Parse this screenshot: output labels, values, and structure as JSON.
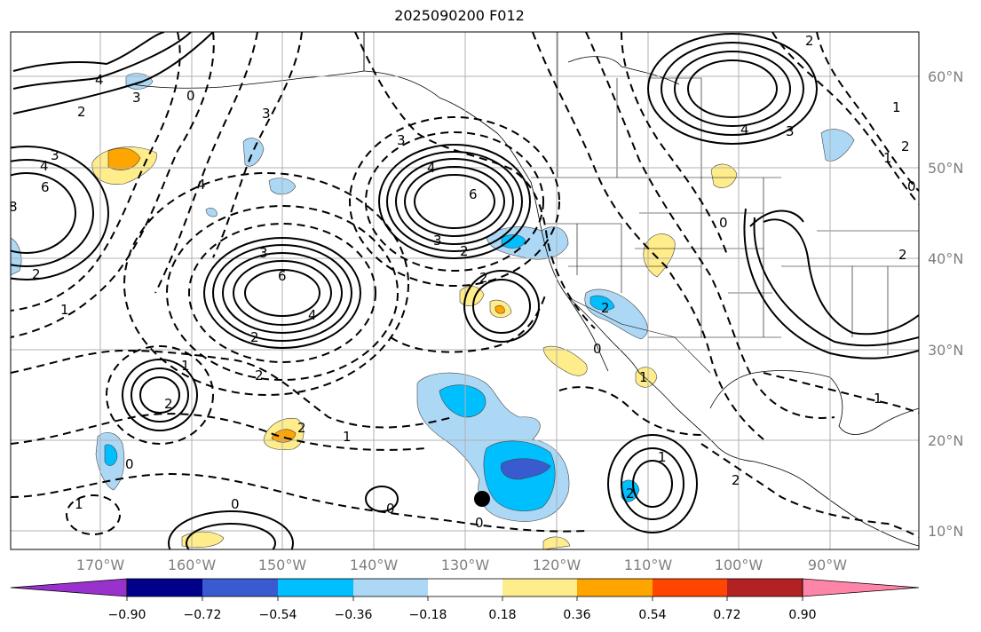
{
  "title": "2025090200 F012",
  "lon_ticks": [
    {
      "label": "170°W",
      "lon": -170
    },
    {
      "label": "160°W",
      "lon": -160
    },
    {
      "label": "150°W",
      "lon": -150
    },
    {
      "label": "140°W",
      "lon": -140
    },
    {
      "label": "130°W",
      "lon": -130
    },
    {
      "label": "120°W",
      "lon": -120
    },
    {
      "label": "110°W",
      "lon": -110
    },
    {
      "label": "100°W",
      "lon": -100
    },
    {
      "label": "90°W",
      "lon": -90
    }
  ],
  "lat_ticks": [
    {
      "label": "60°N",
      "lat": 60
    },
    {
      "label": "50°N",
      "lat": 50
    },
    {
      "label": "40°N",
      "lat": 40
    },
    {
      "label": "30°N",
      "lat": 30
    },
    {
      "label": "20°N",
      "lat": 20
    },
    {
      "label": "10°N",
      "lat": 10
    }
  ],
  "colorbar": {
    "ticks": [
      "−0.90",
      "−0.72",
      "−0.54",
      "−0.36",
      "−0.18",
      "0.18",
      "0.36",
      "0.54",
      "0.72",
      "0.90"
    ],
    "colors": [
      "#9932cc",
      "#00008b",
      "#3a5bcf",
      "#00bfff",
      "#add8f5",
      "#ffffff",
      "#ffec8b",
      "#ffa500",
      "#ff4500",
      "#b22222",
      "#ff85a8"
    ]
  },
  "contour_labels": [
    "4",
    "3",
    "2",
    "0",
    "4",
    "3",
    "4",
    "6",
    "8",
    "2",
    "1",
    "3",
    "4",
    "3",
    "6",
    "2",
    "4",
    "3",
    "6",
    "2",
    "1",
    "2",
    "1",
    "0",
    "2",
    "2",
    "1",
    "0",
    "0",
    "0",
    "2",
    "0",
    "1",
    "2",
    "1",
    "2",
    "4",
    "3",
    "1",
    "2",
    "1",
    "2",
    "0",
    "0",
    "1",
    "2",
    "3",
    "2"
  ],
  "marker": {
    "name": "storm-center",
    "lon": -128.5,
    "lat": 13.5
  }
}
